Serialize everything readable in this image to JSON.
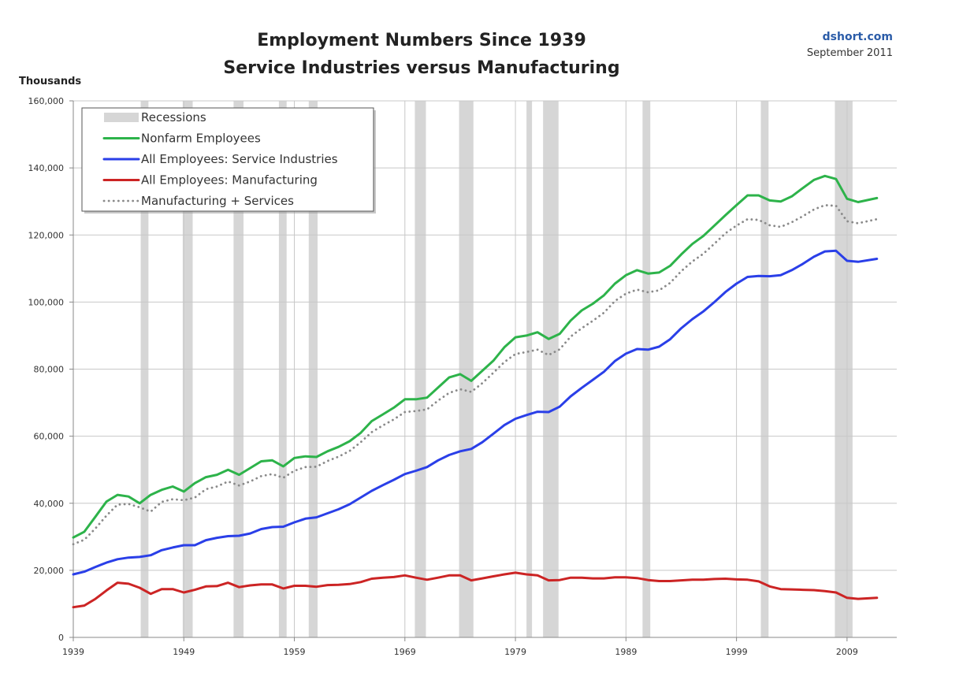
{
  "chart_data": {
    "type": "line",
    "title": "Employment Numbers Since 1939",
    "subtitle": "Service Industries versus Manufacturing",
    "source": "dshort.com",
    "date": "September 2011",
    "ylabel": "Thousands",
    "xlabel": "",
    "xlim": [
      1939,
      2013.5
    ],
    "ylim": [
      0,
      160000
    ],
    "yticks": [
      0,
      20000,
      40000,
      60000,
      80000,
      100000,
      120000,
      140000,
      160000
    ],
    "ytick_labels": [
      "0",
      "20,000",
      "40,000",
      "60,000",
      "80,000",
      "100,000",
      "120,000",
      "140,000",
      "160,000"
    ],
    "xticks": [
      1939,
      1949,
      1959,
      1969,
      1979,
      1989,
      1999,
      2009
    ],
    "xtick_labels": [
      "1939",
      "1949",
      "1959",
      "1969",
      "1979",
      "1989",
      "1999",
      "2009"
    ],
    "grid": true,
    "legend_position": "top-left",
    "legend": [
      "Recessions",
      "Nonfarm Employees",
      "All Employees: Service Industries",
      "All Employees: Manufacturing",
      "Manufacturing + Services"
    ],
    "recessions": [
      [
        1945.1,
        1945.8
      ],
      [
        1948.9,
        1949.8
      ],
      [
        1953.5,
        1954.4
      ],
      [
        1957.6,
        1958.3
      ],
      [
        1960.3,
        1961.1
      ],
      [
        1969.9,
        1970.9
      ],
      [
        1973.9,
        1975.2
      ],
      [
        1980.0,
        1980.5
      ],
      [
        1981.5,
        1982.9
      ],
      [
        1990.5,
        1991.2
      ],
      [
        2001.2,
        2001.9
      ],
      [
        2007.9,
        2009.5
      ]
    ],
    "series": [
      {
        "name": "Nonfarm Employees",
        "color": "#2db34a",
        "style": "solid",
        "x": [
          1939,
          1940,
          1941,
          1942,
          1943,
          1944,
          1945,
          1946,
          1947,
          1948,
          1949,
          1950,
          1951,
          1952,
          1953,
          1954,
          1955,
          1956,
          1957,
          1958,
          1959,
          1960,
          1961,
          1962,
          1963,
          1964,
          1965,
          1966,
          1967,
          1968,
          1969,
          1970,
          1971,
          1972,
          1973,
          1974,
          1975,
          1976,
          1977,
          1978,
          1979,
          1980,
          1981,
          1982,
          1983,
          1984,
          1985,
          1986,
          1987,
          1988,
          1989,
          1990,
          1991,
          1992,
          1993,
          1994,
          1995,
          1996,
          1997,
          1998,
          1999,
          2000,
          2001,
          2002,
          2003,
          2004,
          2005,
          2006,
          2007,
          2008,
          2009,
          2010,
          2011.7
        ],
        "values": [
          29800,
          31500,
          36000,
          40500,
          42500,
          42000,
          40000,
          42500,
          44000,
          45000,
          43500,
          46000,
          47800,
          48500,
          50000,
          48500,
          50500,
          52500,
          52800,
          51000,
          53500,
          54000,
          53800,
          55500,
          56800,
          58500,
          61000,
          64500,
          66500,
          68500,
          71000,
          71000,
          71500,
          74500,
          77500,
          78500,
          76500,
          79500,
          82500,
          86500,
          89500,
          90000,
          91000,
          89000,
          90500,
          94500,
          97500,
          99500,
          102000,
          105500,
          108000,
          109500,
          108500,
          108800,
          110800,
          114200,
          117300,
          119700,
          122800,
          125900,
          128900,
          131800,
          131800,
          130300,
          130000,
          131500,
          134000,
          136400,
          137600,
          136700,
          130800,
          129800,
          131000
        ]
      },
      {
        "name": "All Employees: Service Industries",
        "color": "#2a3fe8",
        "style": "solid",
        "x": [
          1939,
          1940,
          1941,
          1942,
          1943,
          1944,
          1945,
          1946,
          1947,
          1948,
          1949,
          1950,
          1951,
          1952,
          1953,
          1954,
          1955,
          1956,
          1957,
          1958,
          1959,
          1960,
          1961,
          1962,
          1963,
          1964,
          1965,
          1966,
          1967,
          1968,
          1969,
          1970,
          1971,
          1972,
          1973,
          1974,
          1975,
          1976,
          1977,
          1978,
          1979,
          1980,
          1981,
          1982,
          1983,
          1984,
          1985,
          1986,
          1987,
          1988,
          1989,
          1990,
          1991,
          1992,
          1993,
          1994,
          1995,
          1996,
          1997,
          1998,
          1999,
          2000,
          2001,
          2002,
          2003,
          2004,
          2005,
          2006,
          2007,
          2008,
          2009,
          2010,
          2011.7
        ],
        "values": [
          18800,
          19600,
          21000,
          22300,
          23300,
          23800,
          24000,
          24500,
          26000,
          26800,
          27500,
          27500,
          29000,
          29700,
          30200,
          30300,
          31000,
          32300,
          32900,
          33000,
          34300,
          35400,
          35800,
          37000,
          38200,
          39700,
          41700,
          43700,
          45400,
          47000,
          48700,
          49700,
          50800,
          52800,
          54400,
          55500,
          56200,
          58200,
          60700,
          63300,
          65200,
          66300,
          67300,
          67200,
          68800,
          71900,
          74400,
          76800,
          79200,
          82400,
          84600,
          86000,
          85800,
          86700,
          88900,
          92200,
          94900,
          97200,
          100000,
          103000,
          105500,
          107500,
          107800,
          107700,
          108000,
          109500,
          111400,
          113500,
          115100,
          115300,
          112300,
          112000,
          112900
        ]
      },
      {
        "name": "All Employees: Manufacturing",
        "color": "#cc2424",
        "style": "solid",
        "x": [
          1939,
          1940,
          1941,
          1942,
          1943,
          1944,
          1945,
          1946,
          1947,
          1948,
          1949,
          1950,
          1951,
          1952,
          1953,
          1954,
          1955,
          1956,
          1957,
          1958,
          1959,
          1960,
          1961,
          1962,
          1963,
          1964,
          1965,
          1966,
          1967,
          1968,
          1969,
          1970,
          1971,
          1972,
          1973,
          1974,
          1975,
          1976,
          1977,
          1978,
          1979,
          1980,
          1981,
          1982,
          1983,
          1984,
          1985,
          1986,
          1987,
          1988,
          1989,
          1990,
          1991,
          1992,
          1993,
          1994,
          1995,
          1996,
          1997,
          1998,
          1999,
          2000,
          2001,
          2002,
          2003,
          2004,
          2005,
          2006,
          2007,
          2008,
          2009,
          2010,
          2011.7
        ],
        "values": [
          9000,
          9500,
          11500,
          14000,
          16300,
          16000,
          14800,
          13000,
          14400,
          14400,
          13400,
          14200,
          15200,
          15300,
          16300,
          15000,
          15500,
          15800,
          15800,
          14600,
          15400,
          15400,
          15100,
          15600,
          15700,
          15900,
          16500,
          17500,
          17800,
          18000,
          18500,
          17800,
          17200,
          17800,
          18500,
          18500,
          17000,
          17600,
          18200,
          18800,
          19300,
          18800,
          18500,
          17000,
          17100,
          17800,
          17800,
          17600,
          17600,
          17900,
          17900,
          17700,
          17100,
          16800,
          16800,
          17000,
          17200,
          17200,
          17400,
          17500,
          17300,
          17200,
          16700,
          15200,
          14400,
          14300,
          14200,
          14100,
          13800,
          13400,
          11800,
          11500,
          11800
        ]
      },
      {
        "name": "Manufacturing + Services",
        "color": "#8a8a8a",
        "style": "dotted",
        "x": [
          1939,
          1940,
          1941,
          1942,
          1943,
          1944,
          1945,
          1946,
          1947,
          1948,
          1949,
          1950,
          1951,
          1952,
          1953,
          1954,
          1955,
          1956,
          1957,
          1958,
          1959,
          1960,
          1961,
          1962,
          1963,
          1964,
          1965,
          1966,
          1967,
          1968,
          1969,
          1970,
          1971,
          1972,
          1973,
          1974,
          1975,
          1976,
          1977,
          1978,
          1979,
          1980,
          1981,
          1982,
          1983,
          1984,
          1985,
          1986,
          1987,
          1988,
          1989,
          1990,
          1991,
          1992,
          1993,
          1994,
          1995,
          1996,
          1997,
          1998,
          1999,
          2000,
          2001,
          2002,
          2003,
          2004,
          2005,
          2006,
          2007,
          2008,
          2009,
          2010,
          2011.7
        ],
        "values": [
          27800,
          29100,
          32500,
          36300,
          39600,
          39800,
          38800,
          37500,
          40400,
          41200,
          40900,
          41700,
          44200,
          45000,
          46500,
          45300,
          46500,
          48100,
          48700,
          47600,
          49700,
          50800,
          50900,
          52600,
          53900,
          55600,
          58200,
          61200,
          63200,
          65000,
          67200,
          67500,
          68000,
          70600,
          72900,
          74000,
          73200,
          75800,
          78900,
          82100,
          84500,
          85100,
          85800,
          84200,
          85900,
          89700,
          92200,
          94400,
          96800,
          100300,
          102500,
          103700,
          102900,
          103500,
          105700,
          109200,
          112100,
          114400,
          117400,
          120500,
          122800,
          124700,
          124500,
          122900,
          122400,
          123800,
          125600,
          127600,
          128900,
          128700,
          124100,
          123500,
          124700
        ]
      }
    ]
  }
}
